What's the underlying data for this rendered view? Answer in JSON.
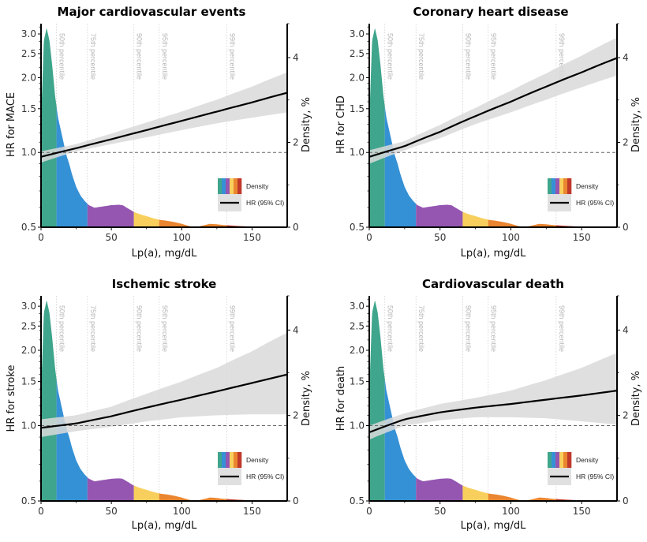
{
  "chart_data": [
    {
      "type": "line",
      "title": "Major cardiovascular events",
      "xlabel": "Lp(a), mg/dL",
      "ylabel": "HR for MACE",
      "y2label": "Density, %",
      "xlim": [
        0,
        175
      ],
      "ylim": [
        0.5,
        3.3
      ],
      "yscale": "log",
      "y2lim": [
        0,
        4.8
      ],
      "xticks": [
        "0",
        "50",
        "100",
        "150"
      ],
      "yticks": [
        "0.5",
        "1.0",
        "1.5",
        "2.0",
        "2.5",
        "3.0"
      ],
      "y2ticks": [
        "0",
        "2",
        "4"
      ],
      "reference_line": 1.0,
      "hr_curve": {
        "x": [
          0,
          25,
          50,
          75,
          100,
          125,
          150,
          175
        ],
        "hr": [
          0.96,
          1.04,
          1.13,
          1.23,
          1.34,
          1.46,
          1.59,
          1.74
        ],
        "lower": [
          0.91,
          1.01,
          1.08,
          1.15,
          1.23,
          1.31,
          1.38,
          1.45
        ],
        "upper": [
          1.01,
          1.08,
          1.19,
          1.32,
          1.46,
          1.63,
          1.84,
          2.1
        ]
      }
    },
    {
      "type": "line",
      "title": "Coronary heart disease",
      "xlabel": "Lp(a), mg/dL",
      "ylabel": "HR for CHD",
      "y2label": "Density, %",
      "xlim": [
        0,
        175
      ],
      "ylim": [
        0.5,
        3.3
      ],
      "yscale": "log",
      "y2lim": [
        0,
        4.8
      ],
      "xticks": [
        "0",
        "50",
        "100",
        "150"
      ],
      "yticks": [
        "0.5",
        "1.0",
        "1.5",
        "2.0",
        "2.5",
        "3.0"
      ],
      "y2ticks": [
        "0",
        "2",
        "4"
      ],
      "reference_line": 1.0,
      "hr_curve": {
        "x": [
          0,
          25,
          50,
          75,
          100,
          125,
          150,
          175
        ],
        "hr": [
          0.96,
          1.06,
          1.21,
          1.4,
          1.6,
          1.84,
          2.1,
          2.4
        ],
        "lower": [
          0.9,
          1.02,
          1.14,
          1.3,
          1.45,
          1.63,
          1.83,
          2.04
        ],
        "upper": [
          1.02,
          1.11,
          1.29,
          1.51,
          1.77,
          2.08,
          2.45,
          2.9
        ]
      }
    },
    {
      "type": "line",
      "title": "Ischemic stroke",
      "xlabel": "Lp(a), mg/dL",
      "ylabel": "HR for stroke",
      "y2label": "Density, %",
      "xlim": [
        0,
        175
      ],
      "ylim": [
        0.5,
        3.3
      ],
      "yscale": "log",
      "y2lim": [
        0,
        4.8
      ],
      "xticks": [
        "0",
        "50",
        "100",
        "150"
      ],
      "yticks": [
        "0.5",
        "1.0",
        "1.5",
        "2.0",
        "2.5",
        "3.0"
      ],
      "y2ticks": [
        "0",
        "2",
        "4"
      ],
      "reference_line": 1.0,
      "hr_curve": {
        "x": [
          0,
          25,
          50,
          75,
          100,
          125,
          150,
          175
        ],
        "hr": [
          0.98,
          1.02,
          1.09,
          1.18,
          1.27,
          1.37,
          1.48,
          1.6
        ],
        "lower": [
          0.9,
          0.95,
          0.99,
          1.04,
          1.08,
          1.1,
          1.11,
          1.11
        ],
        "upper": [
          1.06,
          1.1,
          1.19,
          1.34,
          1.5,
          1.7,
          1.98,
          2.35
        ]
      }
    },
    {
      "type": "line",
      "title": "Cardiovascular death",
      "xlabel": "Lp(a), mg/dL",
      "ylabel": "HR for death",
      "y2label": "Density, %",
      "xlim": [
        0,
        175
      ],
      "ylim": [
        0.5,
        3.3
      ],
      "yscale": "log",
      "y2lim": [
        0,
        4.8
      ],
      "xticks": [
        "0",
        "50",
        "100",
        "150"
      ],
      "yticks": [
        "0.5",
        "1.0",
        "1.5",
        "2.0",
        "2.5",
        "3.0"
      ],
      "y2ticks": [
        "0",
        "2",
        "4"
      ],
      "reference_line": 1.0,
      "hr_curve": {
        "x": [
          0,
          25,
          50,
          75,
          100,
          125,
          150,
          175
        ],
        "hr": [
          0.94,
          1.06,
          1.13,
          1.18,
          1.22,
          1.27,
          1.32,
          1.38
        ],
        "lower": [
          0.88,
          1.0,
          1.05,
          1.08,
          1.08,
          1.07,
          1.04,
          1.01
        ],
        "upper": [
          1.0,
          1.12,
          1.22,
          1.29,
          1.38,
          1.52,
          1.7,
          1.95
        ]
      }
    }
  ],
  "density": {
    "x": [
      0,
      2,
      4,
      6,
      8,
      10,
      12,
      14,
      16,
      18,
      20,
      22,
      25,
      28,
      31,
      34,
      38,
      42,
      46,
      50,
      55,
      58,
      62,
      66,
      70,
      75,
      80,
      85,
      90,
      95,
      100,
      105,
      110,
      115,
      120,
      125,
      130,
      135,
      140,
      150,
      160,
      175
    ],
    "y": [
      2.5,
      4.4,
      4.7,
      4.4,
      3.8,
      3.1,
      2.6,
      2.3,
      2.0,
      1.7,
      1.5,
      1.25,
      0.95,
      0.75,
      0.62,
      0.52,
      0.46,
      0.48,
      0.5,
      0.52,
      0.53,
      0.52,
      0.44,
      0.36,
      0.31,
      0.26,
      0.21,
      0.17,
      0.15,
      0.12,
      0.08,
      0.03,
      0.0,
      0.04,
      0.08,
      0.07,
      0.05,
      0.04,
      0.03,
      0.01,
      0.005,
      0.0
    ],
    "bands": [
      {
        "from": 0,
        "to": 11,
        "color": "#3fa58c"
      },
      {
        "from": 11,
        "to": 33,
        "color": "#3591d6"
      },
      {
        "from": 33,
        "to": 66,
        "color": "#9456b0"
      },
      {
        "from": 66,
        "to": 84,
        "color": "#f8cf5c"
      },
      {
        "from": 84,
        "to": 132,
        "color": "#ea8530"
      },
      {
        "from": 132,
        "to": 175,
        "color": "#c0392b"
      }
    ]
  },
  "percentiles": [
    {
      "x": 11,
      "label": "50th percentile"
    },
    {
      "x": 33,
      "label": "75th percentile"
    },
    {
      "x": 66,
      "label": "90th percentile"
    },
    {
      "x": 84,
      "label": "95th percentile"
    },
    {
      "x": 132,
      "label": "99th percentile"
    }
  ],
  "legend": {
    "density_label": "Density",
    "hr_label": "HR (95% CI)",
    "position": "bottom-right"
  },
  "colors": {
    "ci_band": "#d9d9d9",
    "hr_line": "#000000",
    "reference": "#666666"
  }
}
